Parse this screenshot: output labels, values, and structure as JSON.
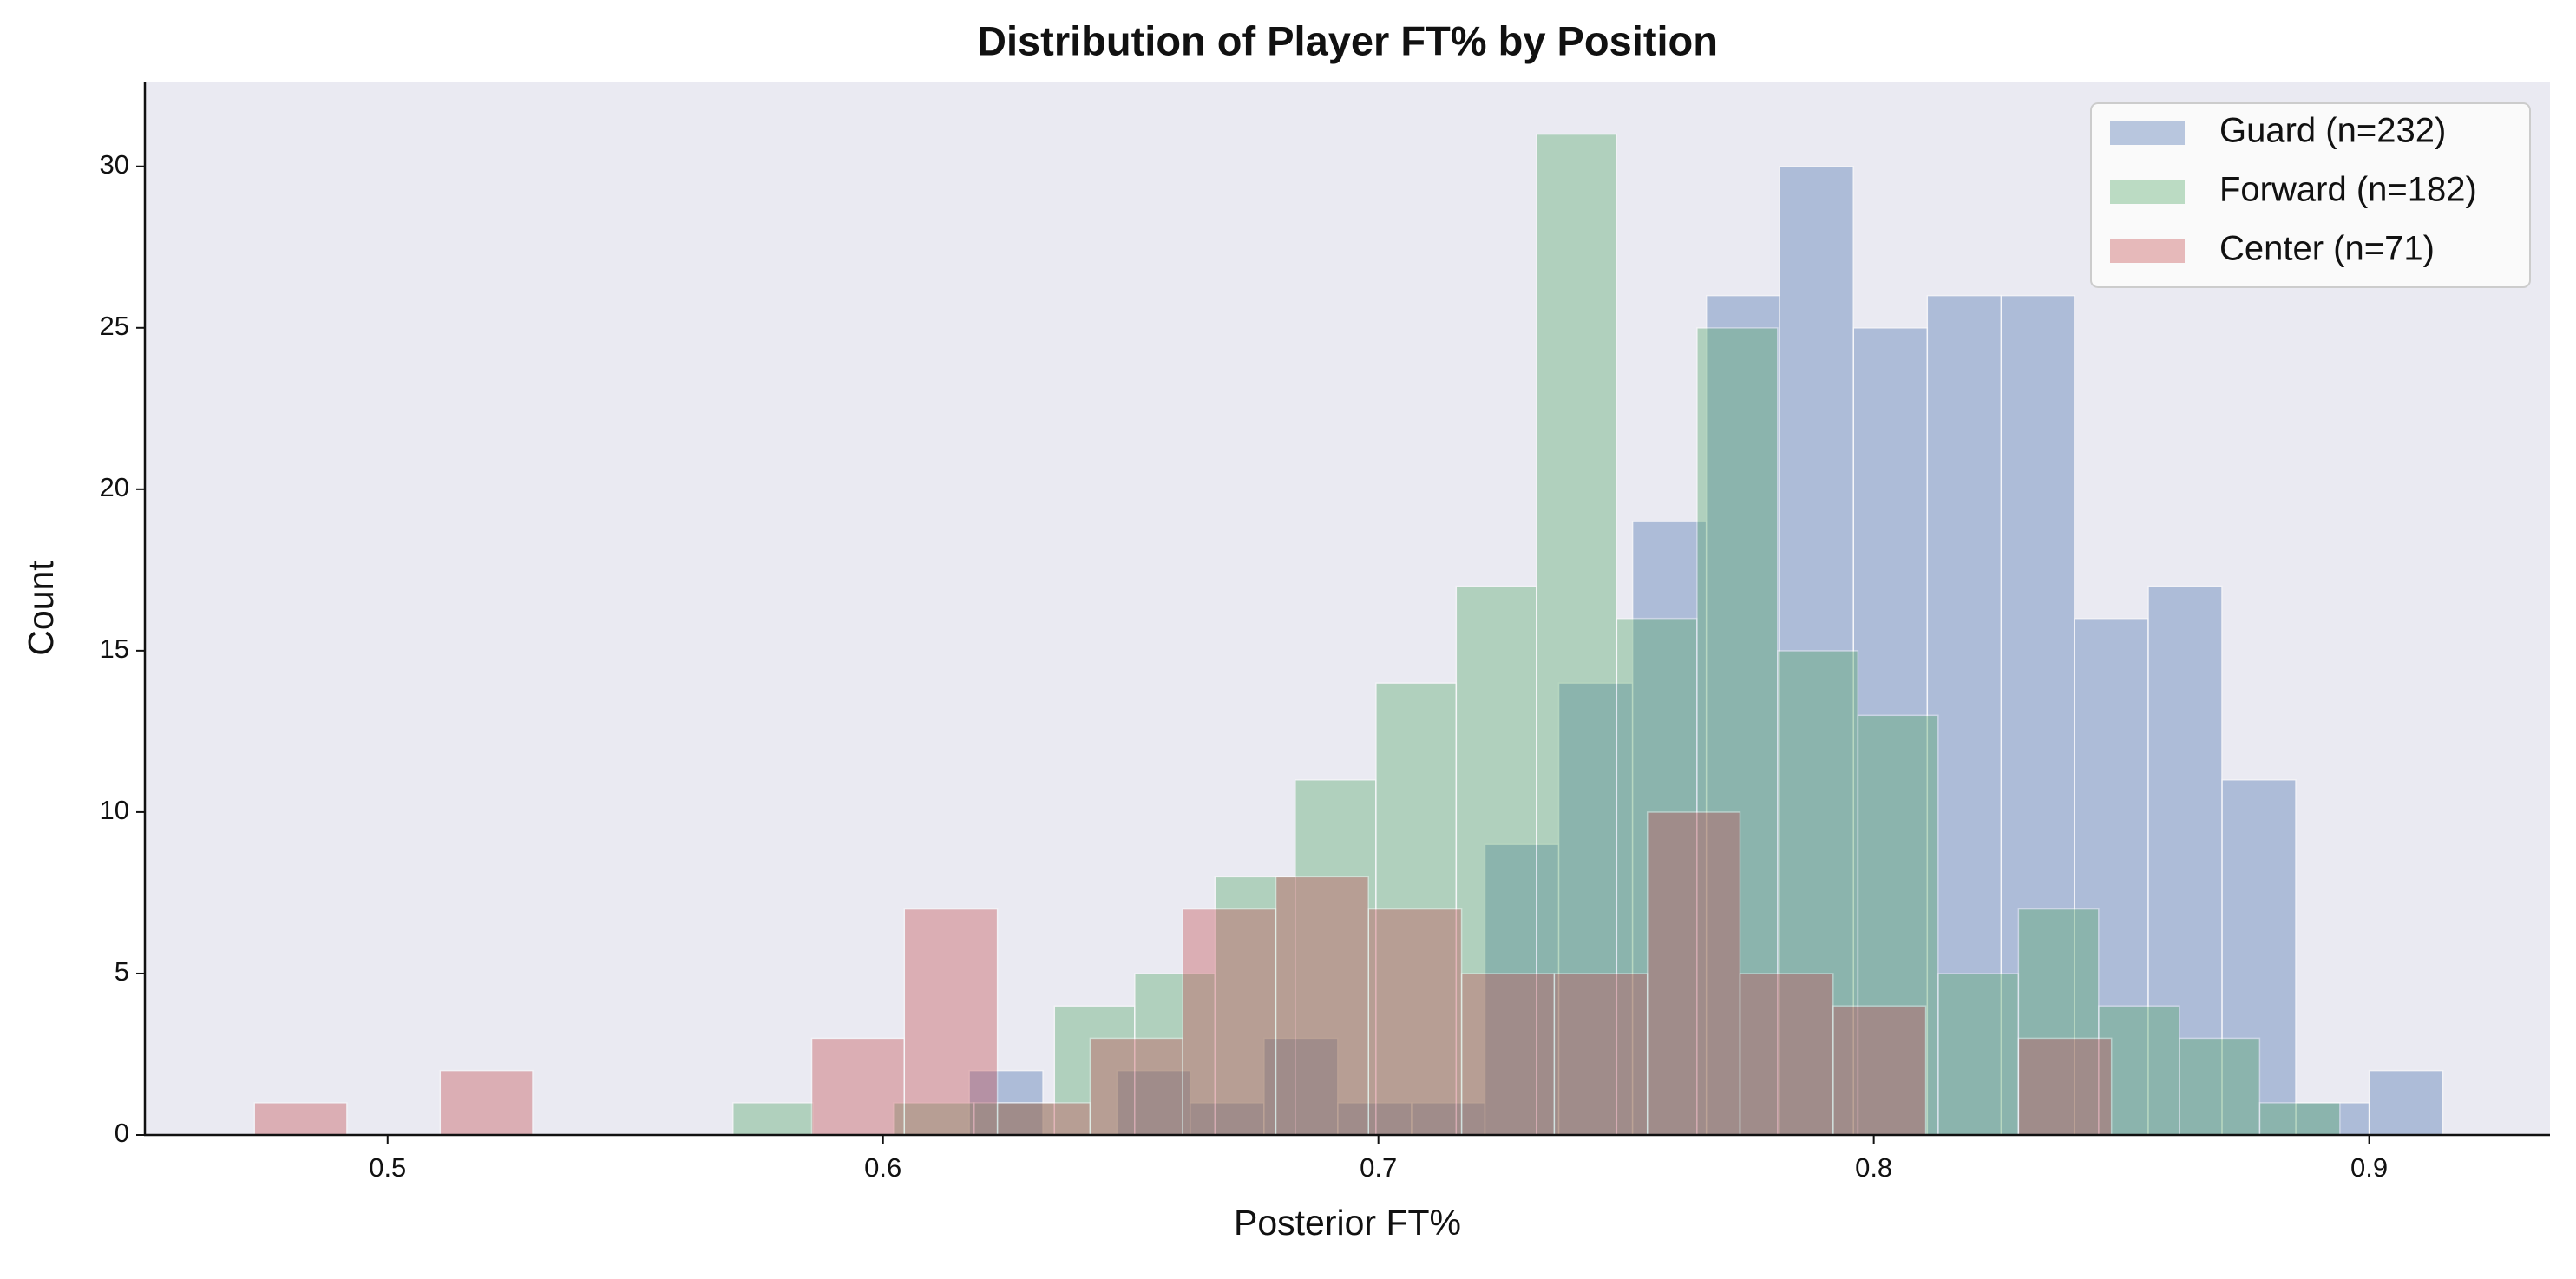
{
  "chart_data": {
    "type": "histogram",
    "title": "Distribution of Player FT% by Position",
    "xlabel": "Posterior FT%",
    "ylabel": "Count",
    "series": [
      {
        "name": "Guard (n=232)",
        "color": "#4c72b0",
        "bins": [
          0.6174,
          0.6323,
          0.6472,
          0.662,
          0.6769,
          0.6918,
          0.7067,
          0.7215,
          0.7364,
          0.7513,
          0.7662,
          0.781,
          0.7959,
          0.8108,
          0.8257,
          0.8405,
          0.8554,
          0.8703,
          0.8852,
          0.9,
          0.9149
        ],
        "values": [
          2,
          0,
          2,
          1,
          3,
          1,
          1,
          9,
          14,
          19,
          26,
          30,
          25,
          26,
          26,
          16,
          17,
          11,
          1,
          2
        ]
      },
      {
        "name": "Forward (n=182)",
        "color": "#55a868",
        "bins": [
          0.5697,
          0.5859,
          0.6021,
          0.6184,
          0.6346,
          0.6508,
          0.667,
          0.6832,
          0.6995,
          0.7157,
          0.7319,
          0.7481,
          0.7643,
          0.7806,
          0.7968,
          0.813,
          0.8292,
          0.8454,
          0.8617,
          0.8779,
          0.8941
        ],
        "values": [
          1,
          0,
          1,
          1,
          4,
          5,
          8,
          11,
          14,
          17,
          31,
          16,
          25,
          15,
          13,
          5,
          7,
          4,
          3,
          1
        ]
      },
      {
        "name": "Center (n=71)",
        "color": "#c44e52",
        "bins": [
          0.4731,
          0.4918,
          0.5106,
          0.5293,
          0.5481,
          0.5668,
          0.5856,
          0.6043,
          0.6231,
          0.6418,
          0.6605,
          0.6793,
          0.698,
          0.7168,
          0.7355,
          0.7543,
          0.773,
          0.7918,
          0.8105,
          0.8292,
          0.848
        ],
        "values": [
          1,
          0,
          2,
          0,
          0,
          0,
          3,
          7,
          1,
          3,
          7,
          8,
          7,
          5,
          5,
          10,
          5,
          4,
          0,
          3
        ]
      }
    ],
    "xlim": [
      0.451,
      0.9365
    ],
    "xticks": [
      0.5,
      0.6,
      0.7,
      0.8,
      0.9
    ],
    "ylim": [
      0,
      32.6
    ],
    "yticks": [
      0,
      5,
      10,
      15,
      20,
      25,
      30
    ],
    "legend": "upper right",
    "grid": false
  }
}
